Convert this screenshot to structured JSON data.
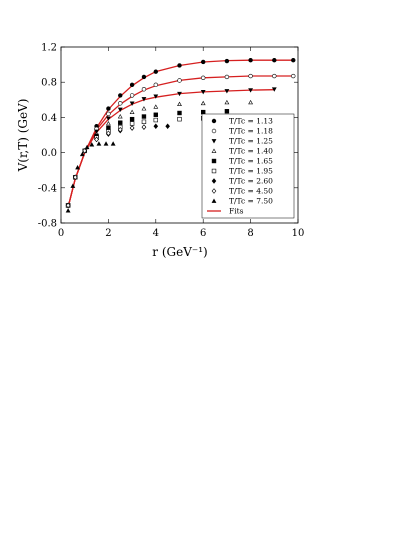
{
  "chart_data": {
    "type": "scatter",
    "xlabel": "r (GeV⁻¹)",
    "ylabel": "V(r,T) (GeV)",
    "xlim": [
      0,
      10
    ],
    "ylim": [
      -0.8,
      1.2
    ],
    "xticks": [
      "0",
      "2",
      "4",
      "6",
      "8",
      "10"
    ],
    "yticks": [
      "-0.8",
      "-0.4",
      "0.0",
      "0.4",
      "0.8",
      "1.2"
    ],
    "legend_position": "bottom-right",
    "fit_color": "#d62020",
    "marker_color": "#000000",
    "series": [
      {
        "name": "T/Tc = 1.13",
        "marker": "filled-circle",
        "x": [
          0.3,
          0.6,
          1.0,
          1.5,
          2.0,
          2.5,
          3.0,
          3.5,
          4.0,
          5.0,
          6.0,
          7.0,
          8.0,
          9.0,
          9.8
        ],
        "y": [
          -0.6,
          -0.28,
          0.02,
          0.3,
          0.5,
          0.65,
          0.77,
          0.86,
          0.92,
          0.99,
          1.03,
          1.04,
          1.05,
          1.05,
          1.05
        ],
        "fit": {
          "x": [
            0.3,
            0.6,
            1.0,
            1.5,
            2.0,
            2.5,
            3.0,
            3.5,
            4.0,
            5.0,
            6.0,
            7.0,
            8.0,
            9.0,
            9.8
          ],
          "y": [
            -0.62,
            -0.3,
            0.0,
            0.28,
            0.49,
            0.64,
            0.76,
            0.85,
            0.92,
            0.99,
            1.03,
            1.045,
            1.05,
            1.05,
            1.05
          ]
        }
      },
      {
        "name": "T/Tc = 1.18",
        "marker": "open-circle",
        "x": [
          0.3,
          0.6,
          1.0,
          1.5,
          2.0,
          2.5,
          3.0,
          3.5,
          4.0,
          5.0,
          6.0,
          7.0,
          8.0,
          9.0,
          9.8
        ],
        "y": [
          -0.6,
          -0.28,
          0.02,
          0.27,
          0.44,
          0.56,
          0.65,
          0.72,
          0.77,
          0.82,
          0.85,
          0.86,
          0.87,
          0.87,
          0.87
        ],
        "fit": {
          "x": [
            0.3,
            0.6,
            1.0,
            1.5,
            2.0,
            2.5,
            3.0,
            3.5,
            4.0,
            5.0,
            6.0,
            7.0,
            8.0,
            9.0,
            9.8
          ],
          "y": [
            -0.62,
            -0.3,
            0.0,
            0.26,
            0.43,
            0.55,
            0.64,
            0.71,
            0.76,
            0.82,
            0.85,
            0.86,
            0.87,
            0.87,
            0.87
          ]
        }
      },
      {
        "name": "T/Tc = 1.25",
        "marker": "filled-triangle-down",
        "x": [
          0.3,
          0.6,
          1.0,
          1.5,
          2.0,
          2.5,
          3.0,
          3.5,
          4.0,
          5.0,
          6.0,
          7.0,
          8.0,
          9.0
        ],
        "y": [
          -0.6,
          -0.28,
          0.02,
          0.24,
          0.39,
          0.49,
          0.56,
          0.61,
          0.64,
          0.67,
          0.69,
          0.7,
          0.71,
          0.72
        ],
        "fit": {
          "x": [
            0.3,
            0.6,
            1.0,
            1.5,
            2.0,
            2.5,
            3.0,
            3.5,
            4.0,
            5.0,
            6.0,
            7.0,
            8.0,
            9.0
          ],
          "y": [
            -0.62,
            -0.3,
            0.0,
            0.23,
            0.38,
            0.48,
            0.55,
            0.6,
            0.63,
            0.67,
            0.69,
            0.7,
            0.71,
            0.715
          ]
        }
      },
      {
        "name": "T/Tc = 1.40",
        "marker": "open-triangle-up",
        "x": [
          0.3,
          0.6,
          1.0,
          1.5,
          2.0,
          2.5,
          3.0,
          3.5,
          4.0,
          5.0,
          6.0,
          7.0,
          8.0
        ],
        "y": [
          -0.6,
          -0.28,
          0.02,
          0.21,
          0.33,
          0.41,
          0.46,
          0.5,
          0.52,
          0.55,
          0.56,
          0.57,
          0.57
        ],
        "fit": null
      },
      {
        "name": "T/Tc = 1.65",
        "marker": "filled-square",
        "x": [
          0.3,
          0.6,
          1.0,
          1.5,
          2.0,
          2.5,
          3.0,
          3.5,
          4.0,
          5.0,
          6.0,
          7.0
        ],
        "y": [
          -0.6,
          -0.28,
          0.02,
          0.19,
          0.28,
          0.34,
          0.38,
          0.41,
          0.43,
          0.45,
          0.46,
          0.47
        ],
        "fit": null
      },
      {
        "name": "T/Tc = 1.95",
        "marker": "open-square",
        "x": [
          0.3,
          0.6,
          1.0,
          1.5,
          2.0,
          2.5,
          3.0,
          3.5,
          4.0,
          5.0,
          6.0
        ],
        "y": [
          -0.6,
          -0.28,
          0.02,
          0.17,
          0.24,
          0.29,
          0.33,
          0.35,
          0.37,
          0.38,
          0.39
        ],
        "fit": null
      },
      {
        "name": "T/Tc = 2.60",
        "marker": "filled-diamond",
        "x": [
          0.3,
          0.6,
          1.0,
          1.5,
          2.0,
          2.5,
          3.0,
          3.5,
          4.0,
          4.5
        ],
        "y": [
          -0.6,
          -0.28,
          0.02,
          0.15,
          0.21,
          0.25,
          0.28,
          0.29,
          0.3,
          0.3
        ],
        "fit": null
      },
      {
        "name": "T/Tc = 4.50",
        "marker": "open-diamond",
        "x": [
          0.3,
          0.6,
          1.0,
          1.5,
          2.0,
          2.5,
          3.0,
          3.5
        ],
        "y": [
          -0.6,
          -0.28,
          0.02,
          0.15,
          0.22,
          0.26,
          0.28,
          0.29
        ],
        "fit": null
      },
      {
        "name": "T/Tc = 7.50",
        "marker": "filled-triangle-up",
        "x": [
          0.3,
          0.5,
          0.7,
          0.9,
          1.1,
          1.3,
          1.6,
          1.9,
          2.2
        ],
        "y": [
          -0.66,
          -0.38,
          -0.17,
          -0.02,
          0.06,
          0.09,
          0.1,
          0.1,
          0.1
        ],
        "fit": null
      }
    ],
    "legend": {
      "entries": [
        "T/Tc = 1.13",
        "T/Tc = 1.18",
        "T/Tc = 1.25",
        "T/Tc = 1.40",
        "T/Tc = 1.65",
        "T/Tc = 1.95",
        "T/Tc = 2.60",
        "T/Tc = 4.50",
        "T/Tc = 7.50",
        "Fits"
      ],
      "markers": [
        "filled-circle",
        "open-circle",
        "filled-triangle-down",
        "open-triangle-up",
        "filled-square",
        "open-square",
        "filled-diamond",
        "open-diamond",
        "filled-triangle-up",
        "fit-line"
      ]
    }
  }
}
